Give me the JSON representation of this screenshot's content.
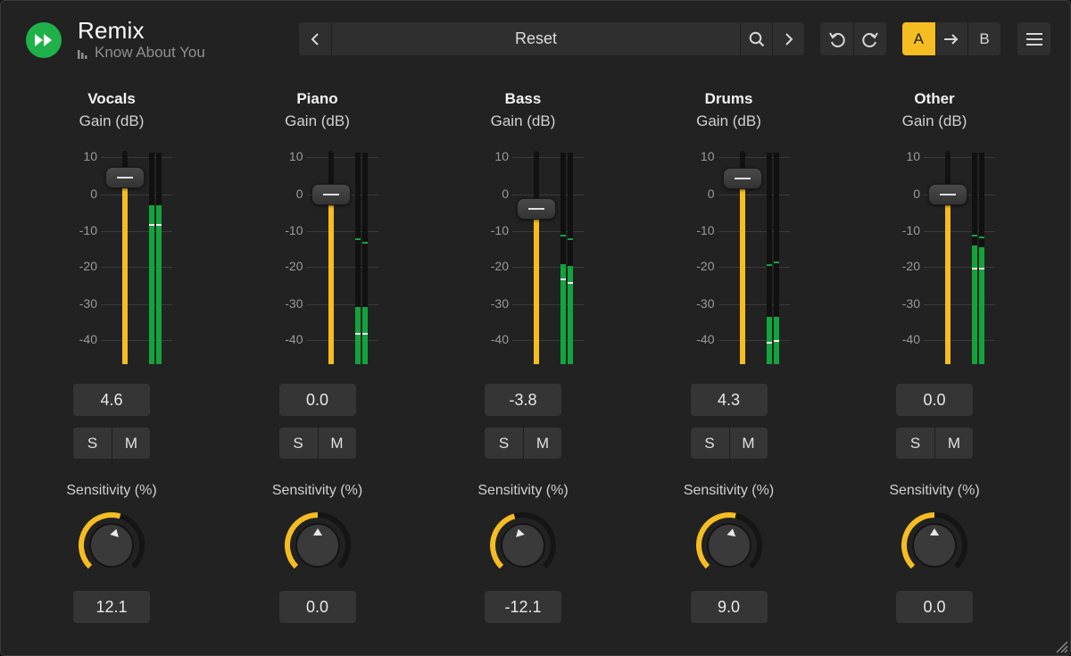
{
  "header": {
    "app_title": "Remix",
    "track_name": "Know About You",
    "logo_icon": "fast-forward-icon",
    "logo_color": "#1fb24b"
  },
  "preset": {
    "name": "Reset",
    "prev_icon": "chevron-left-icon",
    "next_icon": "chevron-right-icon",
    "search_icon": "search-icon"
  },
  "history": {
    "undo_icon": "undo-icon",
    "redo_icon": "redo-icon"
  },
  "ab_compare": {
    "a_label": "A",
    "b_label": "B",
    "copy_icon": "arrow-right-icon",
    "active": "A",
    "accent": "#f5bd22"
  },
  "menu": {
    "icon": "hamburger-menu-icon"
  },
  "scale_ticks": [
    "10",
    "0",
    "-10",
    "-20",
    "-30",
    "-40"
  ],
  "colors": {
    "fader_fill": "#f5bd22",
    "meter_green": "#12a43c",
    "background": "#222222"
  },
  "channels": [
    {
      "name": "Vocals",
      "gain_label": "Gain (dB)",
      "gain_value": "4.6",
      "gain_db": 4.6,
      "solo_label": "S",
      "mute_label": "M",
      "sensitivity_label": "Sensitivity (%)",
      "sensitivity_value": "12.1",
      "sensitivity_pct": 12.1,
      "meter_left": {
        "level_db": -3,
        "peak_db": -3,
        "rms_db": -8
      },
      "meter_right": {
        "level_db": -3,
        "peak_db": -3,
        "rms_db": -8
      }
    },
    {
      "name": "Piano",
      "gain_label": "Gain (dB)",
      "gain_value": "0.0",
      "gain_db": 0.0,
      "solo_label": "S",
      "mute_label": "M",
      "sensitivity_label": "Sensitivity (%)",
      "sensitivity_value": "0.0",
      "sensitivity_pct": 0.0,
      "meter_left": {
        "level_db": -31,
        "peak_db": -12,
        "rms_db": -38
      },
      "meter_right": {
        "level_db": -31,
        "peak_db": -13,
        "rms_db": -38
      }
    },
    {
      "name": "Bass",
      "gain_label": "Gain (dB)",
      "gain_value": "-3.8",
      "gain_db": -3.8,
      "solo_label": "S",
      "mute_label": "M",
      "sensitivity_label": "Sensitivity (%)",
      "sensitivity_value": "-12.1",
      "sensitivity_pct": -12.1,
      "meter_left": {
        "level_db": -19,
        "peak_db": -11,
        "rms_db": -23
      },
      "meter_right": {
        "level_db": -19.5,
        "peak_db": -12,
        "rms_db": -24
      }
    },
    {
      "name": "Drums",
      "gain_label": "Gain (dB)",
      "gain_value": "4.3",
      "gain_db": 4.3,
      "solo_label": "S",
      "mute_label": "M",
      "sensitivity_label": "Sensitivity (%)",
      "sensitivity_value": "9.0",
      "sensitivity_pct": 9.0,
      "meter_left": {
        "level_db": -33.5,
        "peak_db": -19,
        "rms_db": -40.5
      },
      "meter_right": {
        "level_db": -33.5,
        "peak_db": -18.5,
        "rms_db": -40
      }
    },
    {
      "name": "Other",
      "gain_label": "Gain (dB)",
      "gain_value": "0.0",
      "gain_db": 0.0,
      "solo_label": "S",
      "mute_label": "M",
      "sensitivity_label": "Sensitivity (%)",
      "sensitivity_value": "0.0",
      "sensitivity_pct": 0.0,
      "meter_left": {
        "level_db": -14,
        "peak_db": -11,
        "rms_db": -20
      },
      "meter_right": {
        "level_db": -14.5,
        "peak_db": -11.5,
        "rms_db": -20
      }
    }
  ]
}
